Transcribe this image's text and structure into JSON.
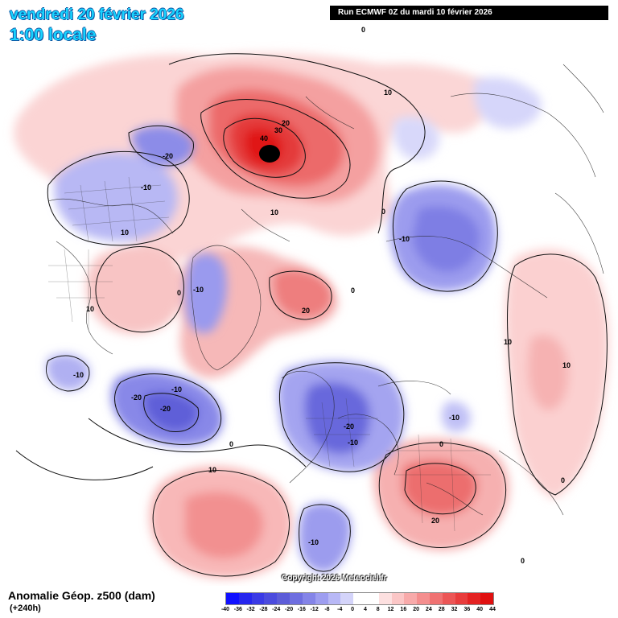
{
  "header": {
    "date_line": "vendredi 20 février 2026",
    "time_line": "1:00 locale",
    "run_info": "Run ECMWF 0Z du mardi 10 février 2026"
  },
  "footer": {
    "title": "Anomalie Géop. z500 (dam)",
    "lead": "(+240h)",
    "copyright": "Copyright 2026 Meteociel.fr"
  },
  "legend": {
    "labels": [
      "-40",
      "-36",
      "-32",
      "-28",
      "-24",
      "-20",
      "-16",
      "-12",
      "-8",
      "-4",
      "0",
      "4",
      "8",
      "12",
      "16",
      "20",
      "24",
      "28",
      "32",
      "36",
      "40",
      "44"
    ],
    "colors": [
      "#1010ff",
      "#2626ee",
      "#3a3ae6",
      "#4b4bde",
      "#5c5cd8",
      "#6e6ee0",
      "#8484e8",
      "#9d9df0",
      "#b8b8f6",
      "#d4d4fa",
      "#ffffff",
      "#ffffff",
      "#fde0e0",
      "#fbc6c6",
      "#f8aaaa",
      "#f48e8e",
      "#f07272",
      "#ec5656",
      "#e83c3c",
      "#e42222",
      "#e01010"
    ]
  },
  "contour_labels": [
    "0",
    "10",
    "20",
    "30",
    "40",
    "10",
    "-20",
    "-10",
    "0",
    "-10",
    "10",
    "0",
    "-10",
    "20",
    "0",
    "10",
    "-10",
    "-20",
    "-10",
    "-20",
    "0",
    "10",
    "-20",
    "-10",
    "-10",
    "20",
    "0",
    "10",
    "-10",
    "10",
    "0",
    "0",
    "10",
    "10",
    "-10"
  ],
  "icons": {
    "map": "geopotential-anomaly-map"
  }
}
